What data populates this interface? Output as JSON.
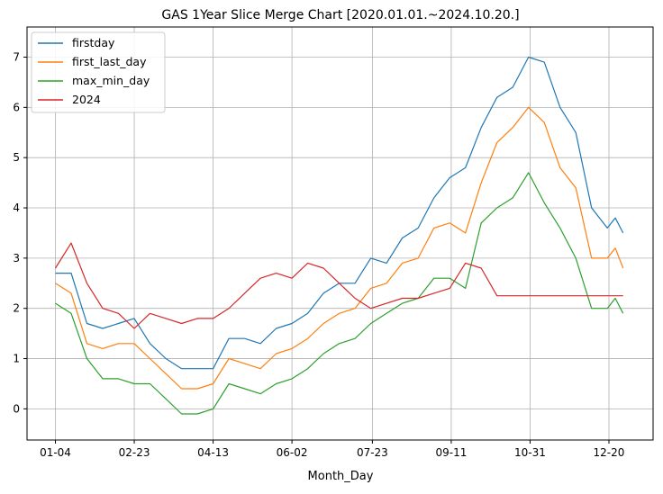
{
  "chart_data": {
    "type": "line",
    "title": "GAS 1Year Slice Merge Chart [2020.01.01.~2024.10.20.]",
    "xlabel": "Month_Day",
    "ylabel": "",
    "x_tick_labels": [
      "01-04",
      "02-23",
      "04-13",
      "06-02",
      "07-23",
      "09-11",
      "10-31",
      "12-20"
    ],
    "x_tick_day_index": [
      0,
      50,
      100,
      150,
      201,
      251,
      301,
      351
    ],
    "y_ticks": [
      0,
      1,
      2,
      3,
      4,
      5,
      6,
      7
    ],
    "xlim": [
      -18,
      379
    ],
    "ylim": [
      -0.62,
      7.6
    ],
    "grid": true,
    "legend_position": "upper-left",
    "colors": {
      "firstday": "#1f77b4",
      "first_last_day": "#ff7f0e",
      "max_min_day": "#2ca02c",
      "2024": "#d62728"
    },
    "x_day_index": [
      0,
      10,
      20,
      30,
      40,
      50,
      60,
      70,
      80,
      90,
      100,
      110,
      120,
      130,
      140,
      150,
      160,
      170,
      180,
      190,
      200,
      210,
      220,
      230,
      240,
      250,
      260,
      270,
      280,
      290,
      300,
      310,
      320,
      330,
      340,
      350,
      355,
      360
    ],
    "series": [
      {
        "name": "firstday",
        "values": [
          2.7,
          2.7,
          1.7,
          1.6,
          1.7,
          1.8,
          1.3,
          1.0,
          0.8,
          0.8,
          0.8,
          1.4,
          1.4,
          1.3,
          1.6,
          1.7,
          1.9,
          2.3,
          2.5,
          2.5,
          3.0,
          2.9,
          3.4,
          3.6,
          4.2,
          4.6,
          4.8,
          5.6,
          6.2,
          6.4,
          7.0,
          6.9,
          6.0,
          5.5,
          4.0,
          3.6,
          3.8,
          3.5
        ]
      },
      {
        "name": "first_last_day",
        "values": [
          2.5,
          2.3,
          1.3,
          1.2,
          1.3,
          1.3,
          1.0,
          0.7,
          0.4,
          0.4,
          0.5,
          1.0,
          0.9,
          0.8,
          1.1,
          1.2,
          1.4,
          1.7,
          1.9,
          2.0,
          2.4,
          2.5,
          2.9,
          3.0,
          3.6,
          3.7,
          3.5,
          4.5,
          5.3,
          5.6,
          6.0,
          5.7,
          4.8,
          4.4,
          3.0,
          3.0,
          3.2,
          2.8
        ]
      },
      {
        "name": "max_min_day",
        "values": [
          2.1,
          1.9,
          1.0,
          0.6,
          0.6,
          0.5,
          0.5,
          0.2,
          -0.1,
          -0.1,
          0.0,
          0.5,
          0.4,
          0.3,
          0.5,
          0.6,
          0.8,
          1.1,
          1.3,
          1.4,
          1.7,
          1.9,
          2.1,
          2.2,
          2.6,
          2.6,
          2.4,
          3.7,
          4.0,
          4.2,
          4.7,
          4.1,
          3.6,
          3.0,
          2.0,
          2.0,
          2.2,
          1.9
        ]
      },
      {
        "name": "2024",
        "values": [
          2.8,
          3.3,
          2.5,
          2.0,
          1.9,
          1.6,
          1.9,
          1.8,
          1.7,
          1.8,
          1.8,
          2.0,
          2.3,
          2.6,
          2.7,
          2.6,
          2.9,
          2.8,
          2.5,
          2.2,
          2.0,
          2.1,
          2.2,
          2.2,
          2.3,
          2.4,
          2.9,
          2.8,
          2.25,
          2.25,
          2.25,
          2.25,
          2.25,
          2.25,
          2.25,
          2.25,
          2.25,
          2.25
        ]
      }
    ]
  }
}
